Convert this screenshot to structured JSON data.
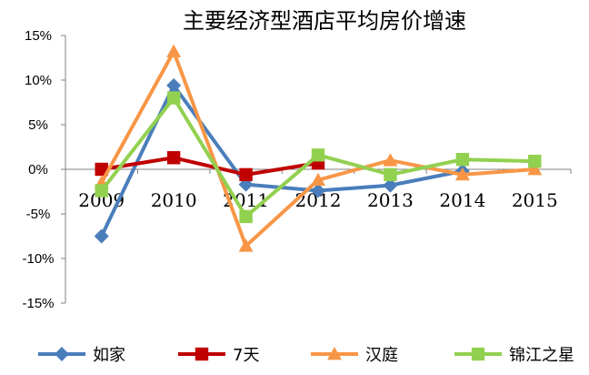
{
  "chart_data": {
    "type": "line",
    "title": "主要经济型酒店平均房价增速",
    "xlabel": "",
    "ylabel": "",
    "categories": [
      "2009",
      "2010",
      "2011",
      "2012",
      "2013",
      "2014",
      "2015"
    ],
    "y_tick_labels": [
      "15%",
      "10%",
      "5%",
      "0%",
      "-5%",
      "-10%",
      "-15%"
    ],
    "ylim": [
      -15,
      15
    ],
    "grid": false,
    "legend_position": "bottom",
    "series": [
      {
        "name": "如家",
        "color": "#4A7EBB",
        "marker": "diamond",
        "values": [
          -7.5,
          9.4,
          -1.7,
          -2.4,
          -1.8,
          -0.2,
          null
        ]
      },
      {
        "name": "7天",
        "color": "#C00000",
        "marker": "square",
        "values": [
          0,
          1.3,
          -0.6,
          0.7,
          null,
          null,
          null
        ]
      },
      {
        "name": "汉庭",
        "color": "#F79646",
        "marker": "triangle",
        "values": [
          -1.5,
          13.2,
          -8.6,
          -1.2,
          1.0,
          -0.6,
          0
        ]
      },
      {
        "name": "锦江之星",
        "color": "#92D050",
        "marker": "square",
        "values": [
          -2.4,
          8.0,
          -5.3,
          1.6,
          -0.6,
          1.1,
          0.9
        ]
      }
    ]
  }
}
